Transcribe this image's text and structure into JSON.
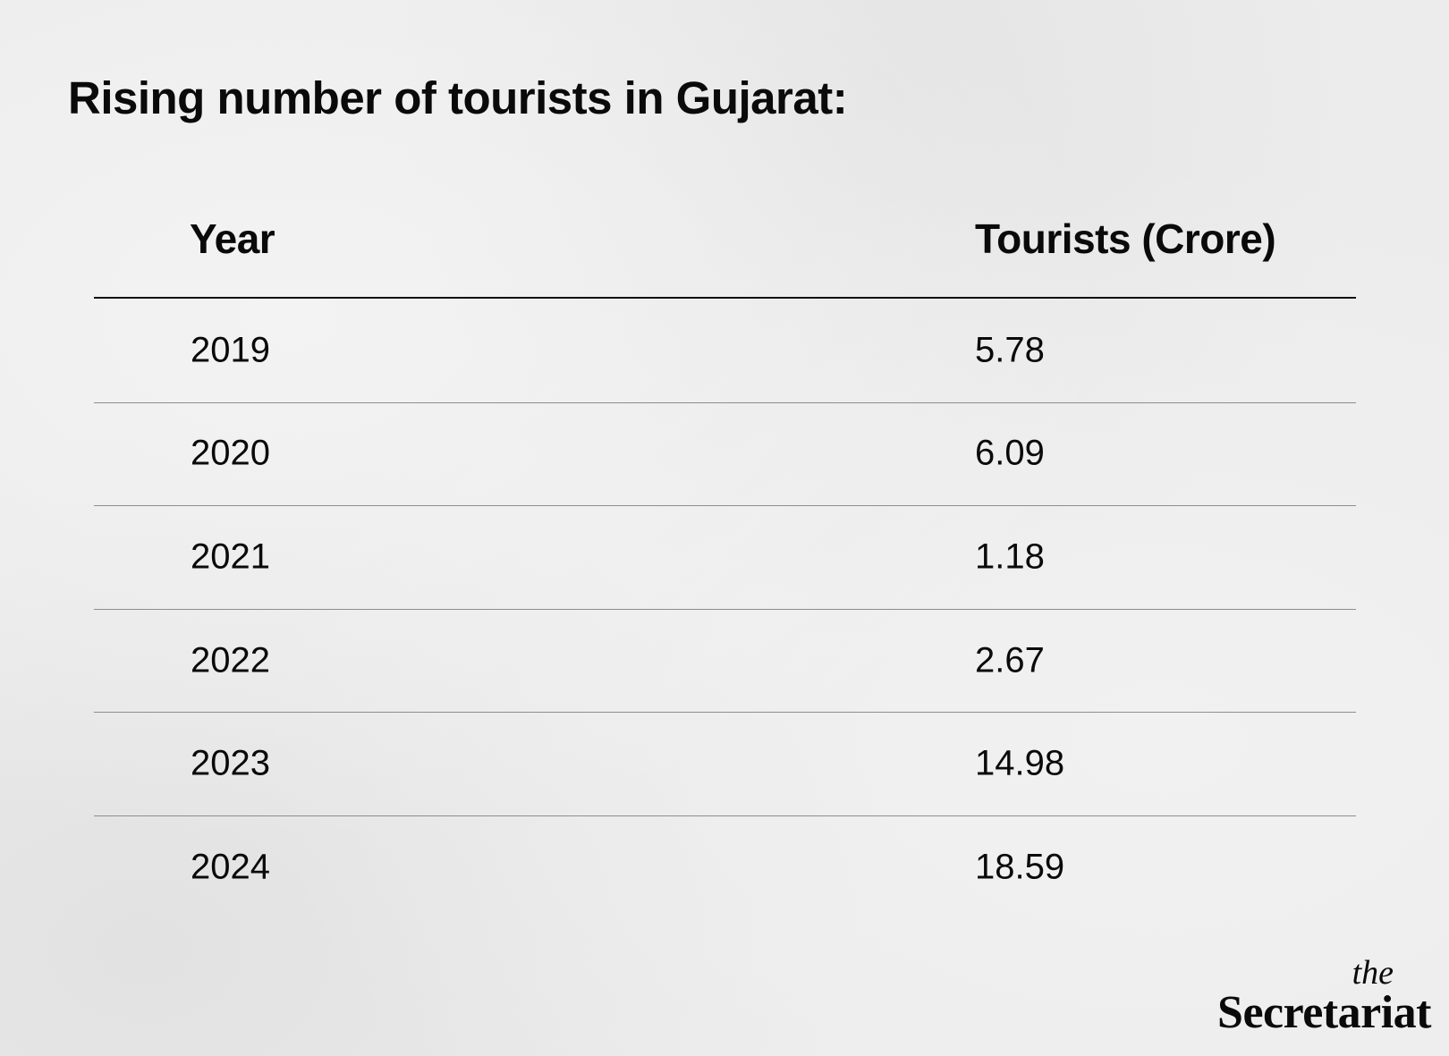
{
  "chart_data": {
    "type": "table",
    "title": "Rising number of tourists in Gujarat:",
    "columns": [
      "Year",
      "Tourists (Crore)"
    ],
    "rows": [
      [
        "2019",
        "5.78"
      ],
      [
        "2020",
        "6.09"
      ],
      [
        "2021",
        "1.18"
      ],
      [
        "2022",
        "2.67"
      ],
      [
        "2023",
        "14.98"
      ],
      [
        "2024",
        "18.59"
      ]
    ]
  },
  "branding": {
    "the": "the",
    "name": "Secretariat"
  }
}
